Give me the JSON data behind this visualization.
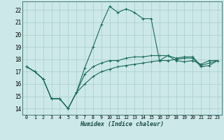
{
  "xlabel": "Humidex (Indice chaleur)",
  "background_color": "#cce8e8",
  "grid_color": "#aacccc",
  "line_color": "#1a6b5a",
  "xlim": [
    -0.5,
    23.5
  ],
  "ylim": [
    13.5,
    22.7
  ],
  "xticks": [
    0,
    1,
    2,
    3,
    4,
    5,
    6,
    7,
    8,
    9,
    10,
    11,
    12,
    13,
    14,
    15,
    16,
    17,
    18,
    19,
    20,
    21,
    22,
    23
  ],
  "yticks": [
    14,
    15,
    16,
    17,
    18,
    19,
    20,
    21,
    22
  ],
  "line1_x": [
    0,
    1,
    2,
    3,
    4,
    5,
    6,
    7,
    8,
    9,
    10,
    11,
    12,
    13,
    14,
    15,
    16,
    17,
    18,
    19,
    20,
    21,
    22,
    23
  ],
  "line1_y": [
    17.4,
    17.0,
    16.4,
    14.8,
    14.8,
    14.0,
    15.3,
    16.0,
    16.6,
    17.0,
    17.2,
    17.4,
    17.5,
    17.6,
    17.7,
    17.8,
    17.9,
    17.9,
    18.0,
    18.1,
    18.1,
    17.4,
    17.5,
    17.9
  ],
  "line2_x": [
    0,
    1,
    2,
    3,
    4,
    5,
    6,
    7,
    8,
    9,
    10,
    11,
    12,
    13,
    14,
    15,
    16,
    17,
    18,
    19,
    20,
    21,
    22,
    23
  ],
  "line2_y": [
    17.4,
    17.0,
    16.4,
    14.8,
    14.8,
    14.0,
    15.3,
    17.3,
    19.0,
    20.8,
    22.3,
    21.8,
    22.1,
    21.8,
    21.3,
    21.3,
    17.9,
    18.3,
    17.9,
    17.8,
    17.9,
    17.6,
    17.9,
    17.9
  ],
  "line3_x": [
    0,
    1,
    2,
    3,
    4,
    5,
    6,
    7,
    8,
    9,
    10,
    11,
    12,
    13,
    14,
    15,
    16,
    17,
    18,
    19,
    20,
    21,
    22,
    23
  ],
  "line3_y": [
    17.4,
    17.0,
    16.4,
    14.8,
    14.8,
    14.0,
    15.3,
    16.8,
    17.4,
    17.7,
    17.9,
    17.9,
    18.1,
    18.2,
    18.2,
    18.3,
    18.3,
    18.3,
    18.1,
    18.2,
    18.2,
    17.5,
    17.7,
    17.9
  ]
}
